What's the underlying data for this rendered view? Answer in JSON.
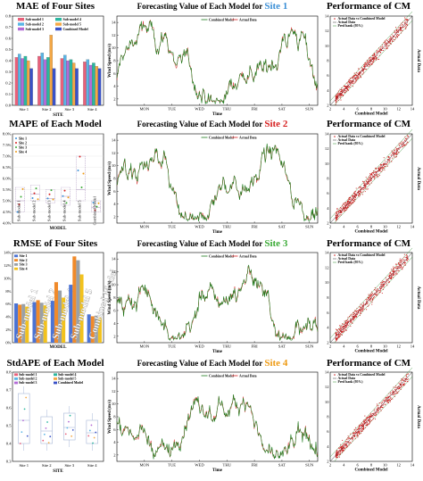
{
  "colors": {
    "combined": "#1a7a1a",
    "actual": "#d62020",
    "scatter_point": "#cc2222",
    "fit_line": "#333333",
    "site_blue": "#3b8fd6",
    "site_red": "#d62020",
    "site_green": "#3aaa35",
    "site_orange": "#ee9a12",
    "model_colors": [
      "#e8607a",
      "#5ab5e6",
      "#b36bd6",
      "#2bb7a0",
      "#f5a846",
      "#3a52c8"
    ]
  },
  "chart_data": [
    {
      "type": "bar",
      "title": "MAE of Four Sites",
      "xlabel": "SITE",
      "ylabel": "",
      "ylim": [
        0.0,
        0.8
      ],
      "yticks": [
        "0.0",
        "0.1",
        "0.2",
        "0.3",
        "0.4",
        "0.5",
        "0.6",
        "0.7",
        "0.8"
      ],
      "categories": [
        "Site 1",
        "Site 2",
        "Site 3",
        "Site 4"
      ],
      "legend_position": "top",
      "series": [
        {
          "name": "Sub-model 1",
          "values": [
            0.43,
            0.44,
            0.42,
            0.39
          ]
        },
        {
          "name": "Sub-model 2",
          "values": [
            0.46,
            0.47,
            0.45,
            0.41
          ]
        },
        {
          "name": "Sub-model 3",
          "values": [
            0.42,
            0.41,
            0.4,
            0.36
          ]
        },
        {
          "name": "Sub-model 4",
          "values": [
            0.44,
            0.43,
            0.41,
            0.38
          ]
        },
        {
          "name": "Sub-model 5",
          "values": [
            0.4,
            0.63,
            0.38,
            0.35
          ]
        },
        {
          "name": "Combined Model",
          "values": [
            0.33,
            0.33,
            0.33,
            0.33
          ]
        }
      ]
    },
    {
      "type": "scatter",
      "title": "MAPE of Each Model",
      "xlabel": "MODEL",
      "ylabel": "",
      "ylim": [
        4.0,
        8.0
      ],
      "yticks": [
        "4.0%",
        "4.5%",
        "5.0%",
        "5.5%",
        "6.0%",
        "6.5%",
        "7.0%",
        "7.5%",
        "8.0%"
      ],
      "legend": [
        "Site 1",
        "Site 2",
        "Site 3",
        "Site 4"
      ],
      "categories": [
        "Sub-model 1",
        "Sub-model 2",
        "Sub-model 3",
        "Sub-model 4",
        "Sub-model 5",
        "Combined Model"
      ],
      "box_ranges": [
        [
          4.5,
          5.6
        ],
        [
          5.0,
          5.7
        ],
        [
          4.9,
          5.5
        ],
        [
          4.8,
          5.6
        ],
        [
          5.0,
          7.0
        ],
        [
          4.5,
          5.0
        ]
      ],
      "medians": [
        5.0,
        5.3,
        5.1,
        5.2,
        5.5,
        4.7
      ]
    },
    {
      "type": "bar",
      "title": "RMSE of Four Sites",
      "xlabel": "MODEL",
      "ylabel": "",
      "ylim": [
        0,
        14
      ],
      "yticks": [
        "0%",
        "2%",
        "4%",
        "6%",
        "8%",
        "10%",
        "12%",
        "14%"
      ],
      "legend": [
        "Site 1",
        "Site 2",
        "Site 3",
        "Site 4"
      ],
      "categories": [
        "Sub-model 1",
        "Sub-model 2",
        "Sub-model 4",
        "Sub-model 5",
        "Combined Model"
      ],
      "series": [
        {
          "name": "Site 1",
          "values": [
            6.1,
            6.3,
            6.5,
            9.0,
            4.4
          ]
        },
        {
          "name": "Site 2",
          "values": [
            5.9,
            6.6,
            9.4,
            13.4,
            4.1
          ]
        },
        {
          "name": "Site 3",
          "values": [
            6.0,
            6.2,
            8.1,
            12.8,
            4.2
          ]
        },
        {
          "name": "Site 4",
          "values": [
            5.6,
            5.8,
            7.0,
            10.6,
            3.9
          ]
        }
      ]
    },
    {
      "type": "scatter",
      "title": "StdAPE of Each Model",
      "xlabel": "SITE",
      "ylabel": "",
      "ylim": [
        0.3,
        0.8
      ],
      "yticks": [
        "0.3",
        "0.4",
        "0.5",
        "0.6",
        "0.7",
        "0.8"
      ],
      "legend": [
        "Sub-model 1",
        "Sub-model 2",
        "Sub-model 3",
        "Sub-model 4",
        "Sub-model 5",
        "Combined Model"
      ],
      "categories": [
        "Site 1",
        "Site 2",
        "Site 3",
        "Site 4"
      ],
      "box_ranges": [
        [
          0.4,
          0.68
        ],
        [
          0.4,
          0.55
        ],
        [
          0.42,
          0.57
        ],
        [
          0.4,
          0.53
        ]
      ],
      "medians": [
        0.53,
        0.47,
        0.49,
        0.46
      ]
    },
    {
      "type": "line",
      "title_prefix": "Forecasting Value of Each Model for ",
      "site_label": "Site 1",
      "xlabel": "Time",
      "ylabel": "Wind Speed (m/s)",
      "legend": [
        "Combined Model",
        "Actual Data"
      ],
      "xticks": [
        "MON",
        "TUE",
        "WED",
        "THU",
        "FRI",
        "SAT",
        "SUN"
      ]
    },
    {
      "type": "line",
      "title_prefix": "Forecasting Value of Each Model for ",
      "site_label": "Site 2",
      "xlabel": "Time",
      "ylabel": "Wind Speed (m/s)",
      "legend": [
        "Combined Model",
        "Actual Data"
      ],
      "xticks": [
        "MON",
        "TUE",
        "WED",
        "THU",
        "FRI",
        "SAT",
        "SUN"
      ]
    },
    {
      "type": "line",
      "title_prefix": "Forecasting Value of Each Model for ",
      "site_label": "Site 3",
      "xlabel": "Time",
      "ylabel": "Wind Speed (m/s)",
      "legend": [
        "Combined Model",
        "Actual Data"
      ],
      "xticks": [
        "MON",
        "TUE",
        "WED",
        "THU",
        "FRI",
        "SAT",
        "SUN"
      ]
    },
    {
      "type": "line",
      "title_prefix": "Forecasting Value of Each Model for ",
      "site_label": "Site 4",
      "xlabel": "Time",
      "ylabel": "Wind Speed (m/s)",
      "legend": [
        "Combined Model",
        "Actual Data"
      ],
      "xticks": [
        "MON",
        "TUE",
        "WED",
        "THU",
        "FRI",
        "SAT",
        "SUN"
      ]
    },
    {
      "type": "scatter",
      "title": "Performance of CM",
      "xlabel": "Combined Model",
      "ylabel": "Actual Data",
      "legend": [
        "Actual Data vs Combined Model",
        "Actual Data",
        "Pred bank (95%)"
      ],
      "xlim": [
        2,
        14
      ],
      "ylim": [
        2,
        14
      ],
      "ticks": [
        "2",
        "4",
        "6",
        "8",
        "10",
        "12",
        "14"
      ]
    },
    {
      "type": "scatter",
      "title": "Performance of CM",
      "xlabel": "Combined Model",
      "ylabel": "Actual Data",
      "legend": [
        "Actual Data vs Combined Model",
        "Actual Data",
        "Pred bank (95%)"
      ],
      "xlim": [
        2,
        14
      ],
      "ylim": [
        2,
        14
      ],
      "ticks": [
        "2",
        "4",
        "6",
        "8",
        "10",
        "12",
        "14"
      ]
    },
    {
      "type": "scatter",
      "title": "Performance of CM",
      "xlabel": "Combined Model",
      "ylabel": "Actual Data",
      "legend": [
        "Actual Data vs Combined Model",
        "Actual Data",
        "Pred bank (95%)"
      ],
      "xlim": [
        2,
        14
      ],
      "ylim": [
        2,
        14
      ],
      "ticks": [
        "2",
        "4",
        "6",
        "8",
        "10",
        "12",
        "14"
      ]
    },
    {
      "type": "scatter",
      "title": "Performance of CM",
      "xlabel": "Combined Model",
      "ylabel": "Actual Data",
      "legend": [
        "Actual Data vs Combined Model",
        "Actual Data",
        "Pred bank (95%)"
      ],
      "xlim": [
        2,
        14
      ],
      "ylim": [
        2,
        14
      ],
      "ticks": [
        "2",
        "4",
        "6",
        "8",
        "10",
        "12",
        "14"
      ]
    }
  ]
}
